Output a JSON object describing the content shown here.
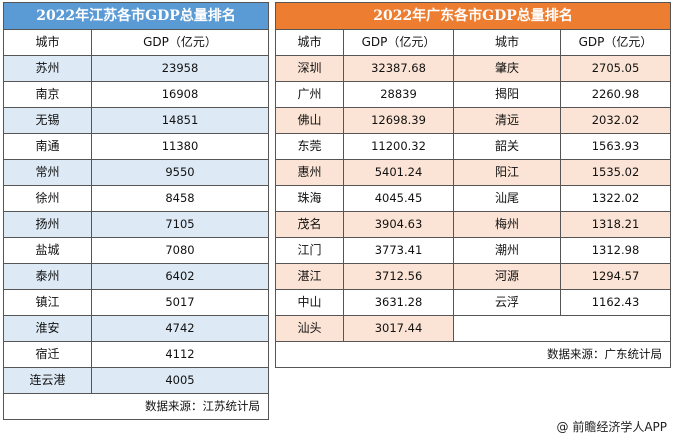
{
  "jiangsu": {
    "title": "2022年江苏各市GDP总量排名",
    "col_city": "城市",
    "col_gdp": "GDP（亿元）",
    "rows": [
      {
        "city": "苏州",
        "gdp": "23958"
      },
      {
        "city": "南京",
        "gdp": "16908"
      },
      {
        "city": "无锡",
        "gdp": "14851"
      },
      {
        "city": "南通",
        "gdp": "11380"
      },
      {
        "city": "常州",
        "gdp": "9550"
      },
      {
        "city": "徐州",
        "gdp": "8458"
      },
      {
        "city": "扬州",
        "gdp": "7105"
      },
      {
        "city": "盐城",
        "gdp": "7080"
      },
      {
        "city": "泰州",
        "gdp": "6402"
      },
      {
        "city": "镇江",
        "gdp": "5017"
      },
      {
        "city": "淮安",
        "gdp": "4742"
      },
      {
        "city": "宿迁",
        "gdp": "4112"
      },
      {
        "city": "连云港",
        "gdp": "4005"
      }
    ],
    "source": "数据来源：江苏统计局"
  },
  "guangdong": {
    "title": "2022年广东各市GDP总量排名",
    "col_city": "城市",
    "col_gdp": "GDP（亿元）",
    "rows": [
      {
        "city1": "深圳",
        "gdp1": "32387.68",
        "city2": "肇庆",
        "gdp2": "2705.05"
      },
      {
        "city1": "广州",
        "gdp1": "28839",
        "city2": "揭阳",
        "gdp2": "2260.98"
      },
      {
        "city1": "佛山",
        "gdp1": "12698.39",
        "city2": "清远",
        "gdp2": "2032.02"
      },
      {
        "city1": "东莞",
        "gdp1": "11200.32",
        "city2": "韶关",
        "gdp2": "1563.93"
      },
      {
        "city1": "惠州",
        "gdp1": "5401.24",
        "city2": "阳江",
        "gdp2": "1535.02"
      },
      {
        "city1": "珠海",
        "gdp1": "4045.45",
        "city2": "汕尾",
        "gdp2": "1322.02"
      },
      {
        "city1": "茂名",
        "gdp1": "3904.63",
        "city2": "梅州",
        "gdp2": "1318.21"
      },
      {
        "city1": "江门",
        "gdp1": "3773.41",
        "city2": "潮州",
        "gdp2": "1312.98"
      },
      {
        "city1": "湛江",
        "gdp1": "3712.56",
        "city2": "河源",
        "gdp2": "1294.57"
      },
      {
        "city1": "中山",
        "gdp1": "3631.28",
        "city2": "云浮",
        "gdp2": "1162.43"
      },
      {
        "city1": "汕头",
        "gdp1": "3017.44",
        "city2": "",
        "gdp2": ""
      }
    ],
    "source": "数据来源：广东统计局"
  },
  "watermark": "@ 前瞻经济学人APP"
}
